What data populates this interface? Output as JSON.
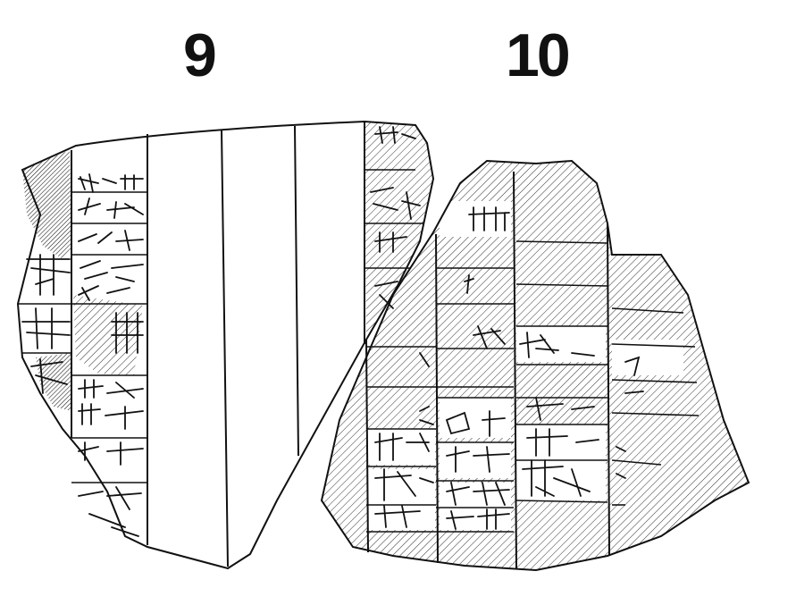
{
  "figure": {
    "labels": {
      "tablet_a": "9",
      "tablet_b": "10"
    },
    "colors": {
      "ink": "#111111",
      "paper": "#ffffff",
      "hatch": "#333333"
    },
    "content": {
      "tablet_a": [
        "cuneiform-signs",
        "blank-columns"
      ],
      "tablet_b": [
        "cuneiform-signs",
        "ruled-cases"
      ]
    }
  }
}
